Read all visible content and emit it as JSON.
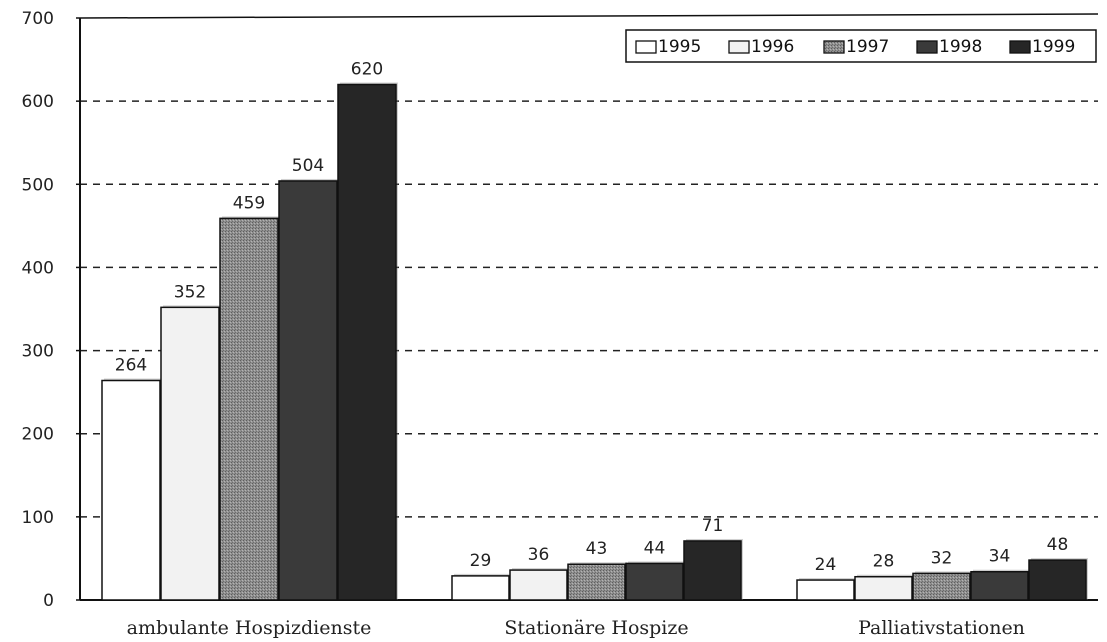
{
  "chart_data": {
    "type": "bar",
    "categories": [
      "ambulante Hospizdienste",
      "Stationäre Hospize",
      "Palliativstationen"
    ],
    "series": [
      {
        "name": "1995",
        "values": [
          264,
          29,
          24
        ],
        "color": "#ffffff"
      },
      {
        "name": "1996",
        "values": [
          352,
          36,
          28
        ],
        "color": "#f3f3f3"
      },
      {
        "name": "1997",
        "values": [
          459,
          43,
          32
        ],
        "color": "#8a8a8a"
      },
      {
        "name": "1998",
        "values": [
          504,
          44,
          34
        ],
        "color": "#3c3c3c"
      },
      {
        "name": "1999",
        "values": [
          620,
          71,
          48
        ],
        "color": "#262626"
      }
    ],
    "data_labels": [
      [
        "264",
        "29",
        "24"
      ],
      [
        "352",
        "36",
        "28"
      ],
      [
        "459",
        "43",
        "32"
      ],
      [
        "504",
        "44",
        "34"
      ],
      [
        "620",
        "71",
        "48"
      ]
    ],
    "ylim": [
      0,
      700
    ],
    "yticks": [
      "0",
      "100",
      "200",
      "300",
      "400",
      "500",
      "600",
      "700"
    ],
    "grid": "dashed horizontal",
    "legend_position": "top-right"
  }
}
